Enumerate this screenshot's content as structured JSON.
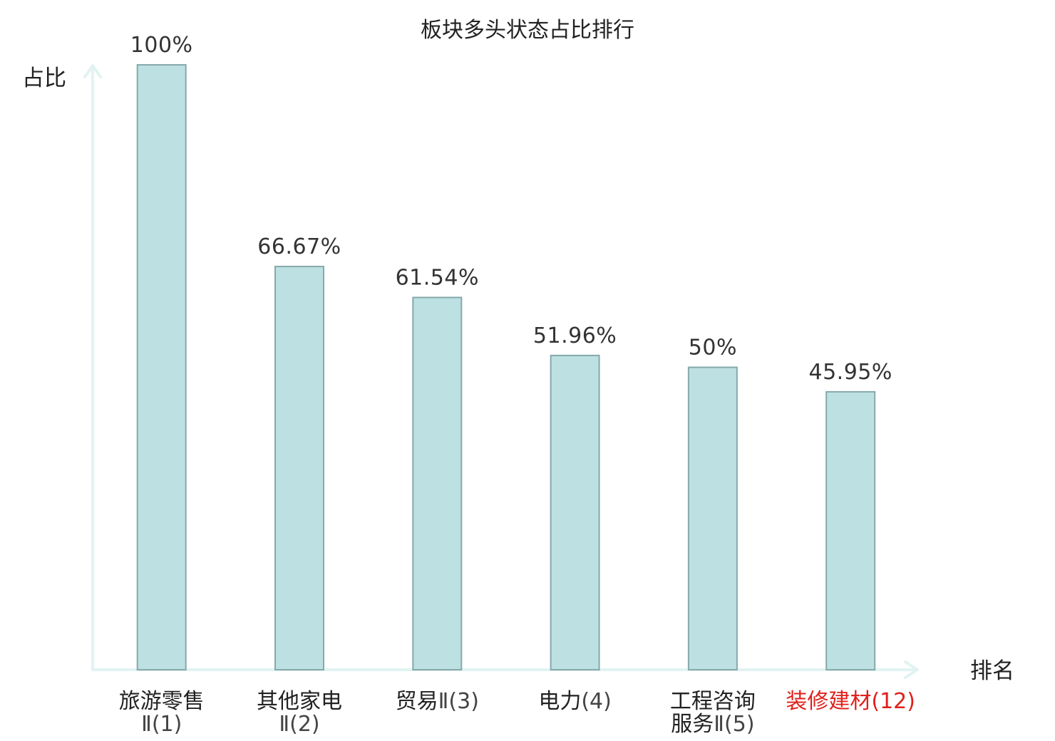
{
  "chart_data": {
    "type": "bar",
    "title": "板块多头状态占比排行",
    "ylabel": "占比",
    "xlabel": "排名",
    "ylim": [
      0,
      100
    ],
    "grid": false,
    "categories": [
      "旅游零售Ⅱ(1)",
      "其他家电Ⅱ(2)",
      "贸易Ⅱ(3)",
      "电力(4)",
      "工程咨询服务Ⅱ(5)",
      "装修建材(12)"
    ],
    "category_lines": [
      {
        "name": "旅游零售",
        "rank": "Ⅱ(1)",
        "wrap": true
      },
      {
        "name": "其他家电",
        "rank": "Ⅱ(2)",
        "wrap": true
      },
      {
        "name": "贸易",
        "rank": "Ⅱ(3)",
        "wrap": false
      },
      {
        "name": "电力",
        "rank": "(4)",
        "wrap": false
      },
      {
        "name": "工程咨询",
        "name2": "服务",
        "rank": "Ⅱ(5)",
        "wrap": true
      },
      {
        "name": "装修建材",
        "rank": "(12)",
        "wrap": false,
        "highlight": true
      }
    ],
    "values": [
      100,
      66.67,
      61.54,
      51.96,
      50,
      45.95
    ],
    "value_labels": [
      "100%",
      "66.67%",
      "61.54%",
      "51.96%",
      "50%",
      "45.95%"
    ],
    "colors": {
      "bar_fill": "#bde0e2",
      "bar_stroke": "#86a9ac",
      "axis": "#e1f3f2",
      "highlight": "#e0201b"
    }
  }
}
